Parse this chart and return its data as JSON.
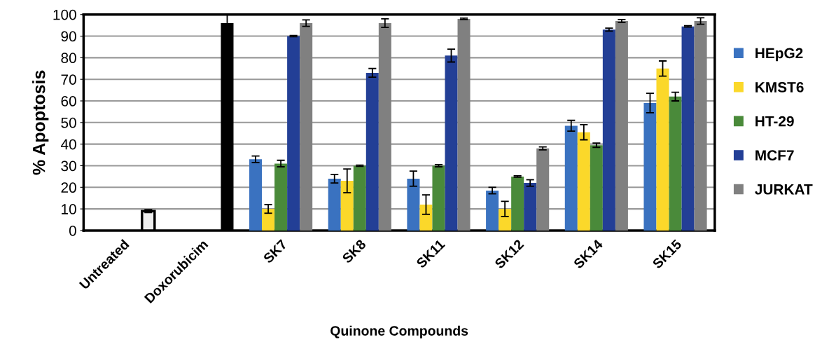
{
  "chart_data": {
    "type": "bar",
    "xlabel": "Quinone Compounds",
    "ylabel": "% Apoptosis",
    "categories": [
      "Untreated",
      "Doxorubicim",
      "SK7",
      "SK8",
      "SK11",
      "SK12",
      "SK14",
      "SK15"
    ],
    "series": [
      {
        "name": "HEpG2",
        "color": "#3a72c0",
        "values": [
          null,
          null,
          33,
          24,
          24,
          18.5,
          48.5,
          59
        ],
        "errors": [
          null,
          null,
          1.5,
          2,
          3.5,
          1.5,
          2.5,
          4.5
        ]
      },
      {
        "name": "KMST6",
        "color": "#fbd82a",
        "values": [
          null,
          null,
          10,
          23,
          12,
          10,
          45.5,
          75
        ],
        "errors": [
          null,
          null,
          2,
          5.5,
          4.5,
          3.5,
          3.5,
          3.5
        ]
      },
      {
        "name": "HT-29",
        "color": "#4a8a3a",
        "values": [
          null,
          null,
          31,
          30,
          30,
          25,
          39.5,
          62
        ],
        "errors": [
          null,
          null,
          1.5,
          0.3,
          0.5,
          0.3,
          1,
          2
        ]
      },
      {
        "name": "MCF7",
        "color": "#233f96",
        "values": [
          null,
          null,
          90,
          73,
          81,
          22,
          93,
          94.5
        ],
        "errors": [
          null,
          null,
          0.3,
          2,
          3,
          1.5,
          0.7,
          0.3
        ]
      },
      {
        "name": "JURKAT",
        "color": "#808080",
        "colors": [
          "#eeeeee",
          "#000000",
          "#808080",
          "#808080",
          "#808080",
          "#808080",
          "#808080",
          "#808080"
        ],
        "values": [
          9,
          96,
          96,
          96,
          98,
          38,
          97,
          97
        ],
        "errors": [
          0.7,
          4,
          1.5,
          2,
          0.3,
          0.7,
          0.7,
          1.5
        ]
      }
    ],
    "ylim": [
      0,
      100
    ],
    "yticks": [
      0,
      10,
      20,
      30,
      40,
      50,
      60,
      70,
      80,
      90,
      100
    ],
    "grid": "y",
    "legend": "right"
  }
}
